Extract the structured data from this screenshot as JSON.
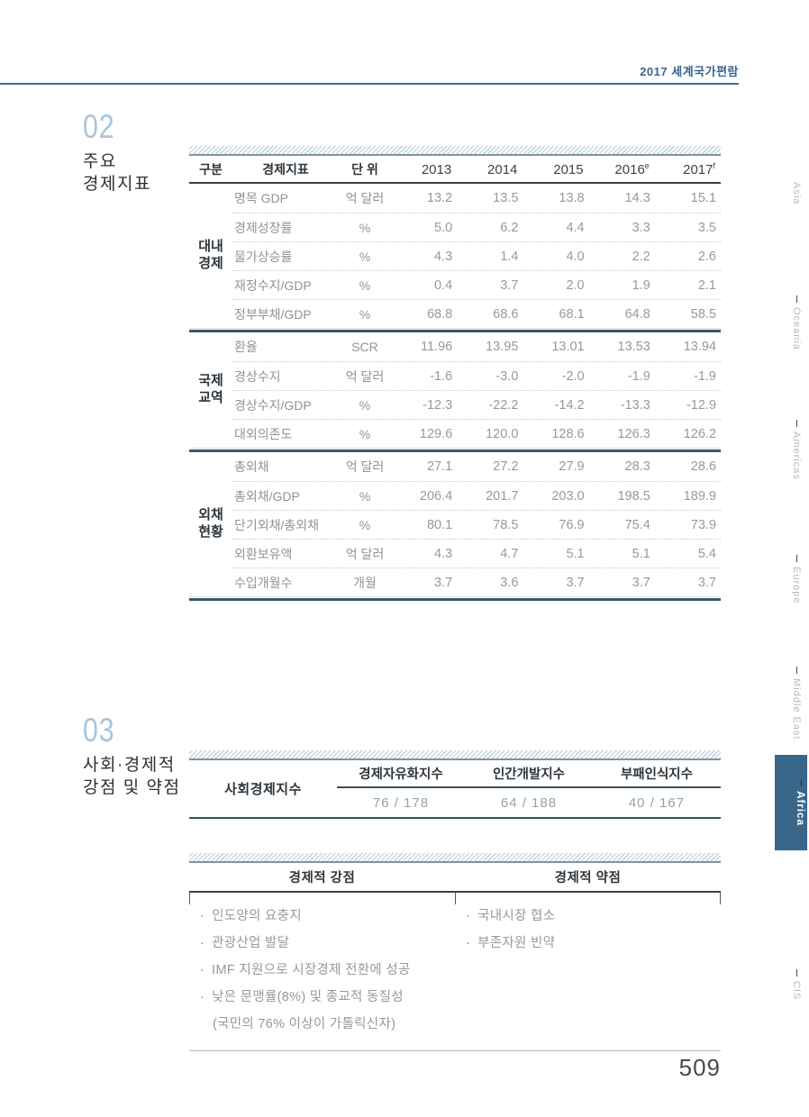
{
  "page_header": {
    "title": "2017 세계국가편람",
    "page_number": "509"
  },
  "section02": {
    "number": "02",
    "title_lines": [
      "주요",
      "경제지표"
    ],
    "table": {
      "col_headers": {
        "group": "구분",
        "indicator": "경제지표",
        "unit": "단 위"
      },
      "years": [
        {
          "label": "2013",
          "sup": ""
        },
        {
          "label": "2014",
          "sup": ""
        },
        {
          "label": "2015",
          "sup": ""
        },
        {
          "label": "2016",
          "sup": "e"
        },
        {
          "label": "2017",
          "sup": "f"
        }
      ],
      "groups": [
        {
          "name_lines": [
            "대내",
            "경제"
          ],
          "rows": [
            {
              "label": "명목 GDP",
              "unit": "억 달러",
              "values": [
                "13.2",
                "13.5",
                "13.8",
                "14.3",
                "15.1"
              ]
            },
            {
              "label": "경제성장률",
              "unit": "%",
              "values": [
                "5.0",
                "6.2",
                "4.4",
                "3.3",
                "3.5"
              ]
            },
            {
              "label": "물가상승률",
              "unit": "%",
              "values": [
                "4.3",
                "1.4",
                "4.0",
                "2.2",
                "2.6"
              ]
            },
            {
              "label": "재정수지/GDP",
              "unit": "%",
              "values": [
                "0.4",
                "3.7",
                "2.0",
                "1.9",
                "2.1"
              ]
            },
            {
              "label": "정부부채/GDP",
              "unit": "%",
              "values": [
                "68.8",
                "68.6",
                "68.1",
                "64.8",
                "58.5"
              ]
            }
          ]
        },
        {
          "name_lines": [
            "국제",
            "교역"
          ],
          "rows": [
            {
              "label": "환율",
              "unit": "SCR",
              "values": [
                "11.96",
                "13.95",
                "13.01",
                "13.53",
                "13.94"
              ]
            },
            {
              "label": "경상수지",
              "unit": "억 달러",
              "values": [
                "-1.6",
                "-3.0",
                "-2.0",
                "-1.9",
                "-1.9"
              ]
            },
            {
              "label": "경상수지/GDP",
              "unit": "%",
              "values": [
                "-12.3",
                "-22.2",
                "-14.2",
                "-13.3",
                "-12.9"
              ]
            },
            {
              "label": "대외의존도",
              "unit": "%",
              "values": [
                "129.6",
                "120.0",
                "128.6",
                "126.3",
                "126.2"
              ]
            }
          ]
        },
        {
          "name_lines": [
            "외채",
            "현황"
          ],
          "rows": [
            {
              "label": "총외채",
              "unit": "억 달러",
              "values": [
                "27.1",
                "27.2",
                "27.9",
                "28.3",
                "28.6"
              ]
            },
            {
              "label": "총외채/GDP",
              "unit": "%",
              "values": [
                "206.4",
                "201.7",
                "203.0",
                "198.5",
                "189.9"
              ]
            },
            {
              "label": "단기외채/총외채",
              "unit": "%",
              "values": [
                "80.1",
                "78.5",
                "76.9",
                "75.4",
                "73.9"
              ]
            },
            {
              "label": "외환보유액",
              "unit": "억 달러",
              "values": [
                "4.3",
                "4.7",
                "5.1",
                "5.1",
                "5.4"
              ]
            },
            {
              "label": "수입개월수",
              "unit": "개월",
              "values": [
                "3.7",
                "3.6",
                "3.7",
                "3.7",
                "3.7"
              ]
            }
          ]
        }
      ]
    }
  },
  "section03": {
    "number": "03",
    "title_lines": [
      "사회·경제적",
      "강점 및 약점"
    ],
    "index_table": {
      "row_label": "사회경제지수",
      "columns": [
        {
          "header": "경제자유화지수",
          "value": "76 / 178"
        },
        {
          "header": "인간개발지수",
          "value": "64 / 188"
        },
        {
          "header": "부패인식지수",
          "value": "40 / 167"
        }
      ]
    },
    "sw_table": {
      "strengths_header": "경제적 강점",
      "weaknesses_header": "경제적 약점",
      "bullet_char": "·",
      "strengths": [
        {
          "text": "인도양의 요충지",
          "bullet": true
        },
        {
          "text": "관광산업 발달",
          "bullet": true
        },
        {
          "text": "IMF 지원으로 시장경제 전환에 성공",
          "bullet": true
        },
        {
          "text": "낮은 문맹률(8%) 및 종교적 동질성",
          "bullet": true
        },
        {
          "text": "(국민의 76% 이상이 가톨릭신자)",
          "bullet": false
        }
      ],
      "weaknesses": [
        {
          "text": "국내시장 협소",
          "bullet": true
        },
        {
          "text": "부존자원 빈약",
          "bullet": true
        }
      ]
    }
  },
  "sidebar": {
    "items": [
      {
        "label": "Asia",
        "active": false
      },
      {
        "label": "Oceania",
        "active": false
      },
      {
        "label": "Americas",
        "active": false
      },
      {
        "label": "Europe",
        "active": false
      },
      {
        "label": "Middle East",
        "active": false
      },
      {
        "label": "Africa",
        "active": true
      },
      {
        "label": "CIS",
        "active": false
      }
    ]
  },
  "colors": {
    "accent_blue": "#38648f",
    "slate_line": "#37596a",
    "active_tab_bg": "#39678a",
    "section_number_blue": "#a8c5da"
  }
}
